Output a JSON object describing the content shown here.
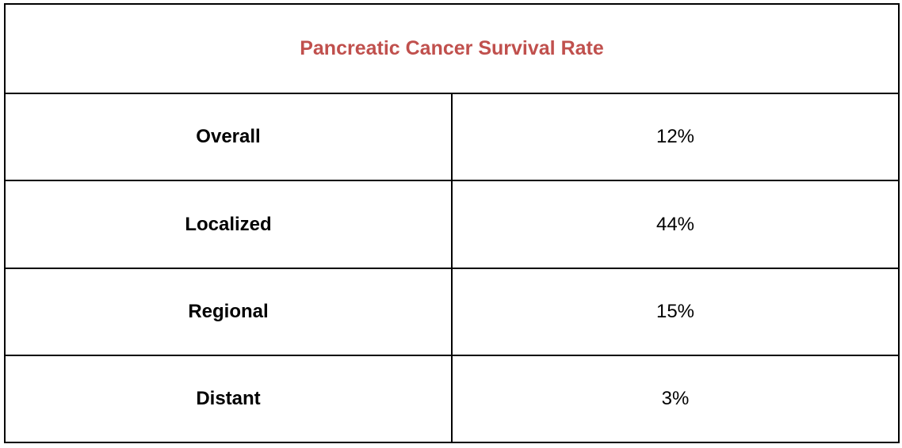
{
  "title": "Pancreatic Cancer Survival Rate",
  "colors": {
    "title": "#c0504d",
    "border": "#000000",
    "text": "#000000"
  },
  "rows": [
    {
      "label": "Overall",
      "value": "12%"
    },
    {
      "label": "Localized",
      "value": "44%"
    },
    {
      "label": "Regional",
      "value": "15%"
    },
    {
      "label": "Distant",
      "value": "3%"
    }
  ]
}
